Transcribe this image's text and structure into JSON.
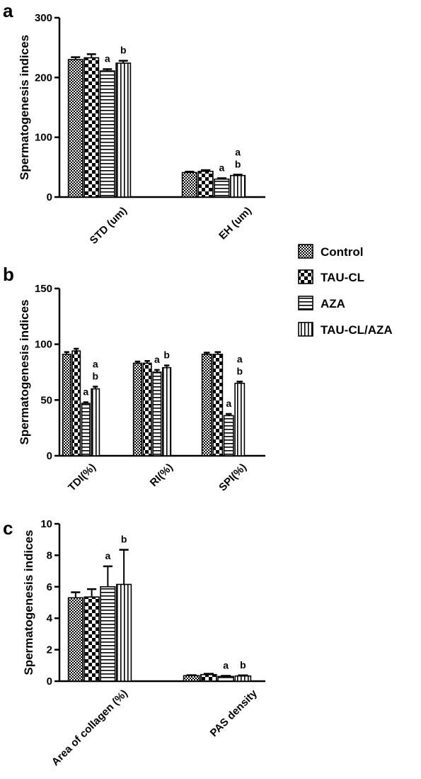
{
  "figure": {
    "legend": [
      "Control",
      "TAU-CL",
      "AZA",
      "TAU-CL/AZA"
    ]
  },
  "chart_data": [
    {
      "type": "bar",
      "panel": "a",
      "ylabel": "Spermatogenesis indices",
      "ylim": [
        0,
        300
      ],
      "yticks": [
        0,
        100,
        200,
        300
      ],
      "categories": [
        "STD (um)",
        "EH (um)"
      ],
      "series": [
        {
          "name": "Control",
          "values": [
            230,
            41
          ],
          "errors": [
            4,
            1.5
          ]
        },
        {
          "name": "TAU-CL",
          "values": [
            233,
            43
          ],
          "errors": [
            6,
            2
          ]
        },
        {
          "name": "AZA",
          "values": [
            211,
            30
          ],
          "errors": [
            3,
            1.5
          ]
        },
        {
          "name": "TAU-CL/AZA",
          "values": [
            224,
            36
          ],
          "errors": [
            4,
            1.5
          ]
        }
      ],
      "annotations": [
        [
          "",
          ""
        ],
        [
          "",
          ""
        ],
        [
          "a",
          "a"
        ],
        [
          "b",
          "a\nb"
        ]
      ]
    },
    {
      "type": "bar",
      "panel": "b",
      "ylabel": "Spermatogenesis indices",
      "ylim": [
        0,
        150
      ],
      "yticks": [
        0,
        50,
        100,
        150
      ],
      "categories": [
        "TDI(%)",
        "RI(%)",
        "SPI(%)"
      ],
      "series": [
        {
          "name": "Control",
          "values": [
            91,
            83,
            91
          ],
          "errors": [
            2,
            1.5,
            1.5
          ]
        },
        {
          "name": "TAU-CL",
          "values": [
            94,
            83,
            91
          ],
          "errors": [
            2,
            2,
            2
          ]
        },
        {
          "name": "AZA",
          "values": [
            47,
            75,
            36
          ],
          "errors": [
            1,
            2,
            1.5
          ]
        },
        {
          "name": "TAU-CL/AZA",
          "values": [
            60,
            79,
            65
          ],
          "errors": [
            2,
            2,
            1.5
          ]
        }
      ],
      "annotations": [
        [
          "",
          "",
          ""
        ],
        [
          "",
          "",
          ""
        ],
        [
          "a",
          "a",
          "a"
        ],
        [
          "a\nb",
          "b",
          "a\nb"
        ]
      ]
    },
    {
      "type": "bar",
      "panel": "c",
      "ylabel": "Spermatogenesis indices",
      "ylim": [
        0,
        10
      ],
      "yticks": [
        0,
        2,
        4,
        6,
        8,
        10
      ],
      "categories": [
        "Area of collagen (%)",
        "PAS density"
      ],
      "series": [
        {
          "name": "Control",
          "values": [
            5.3,
            0.35
          ],
          "errors": [
            0.35,
            0.03
          ]
        },
        {
          "name": "TAU-CL",
          "values": [
            5.35,
            0.42
          ],
          "errors": [
            0.5,
            0.05
          ]
        },
        {
          "name": "AZA",
          "values": [
            6.0,
            0.3
          ],
          "errors": [
            1.3,
            0.04
          ]
        },
        {
          "name": "TAU-CL/AZA",
          "values": [
            6.15,
            0.33
          ],
          "errors": [
            2.2,
            0.04
          ]
        }
      ],
      "annotations": [
        [
          "",
          ""
        ],
        [
          "",
          ""
        ],
        [
          "a",
          "a"
        ],
        [
          "b",
          "b"
        ]
      ]
    }
  ]
}
